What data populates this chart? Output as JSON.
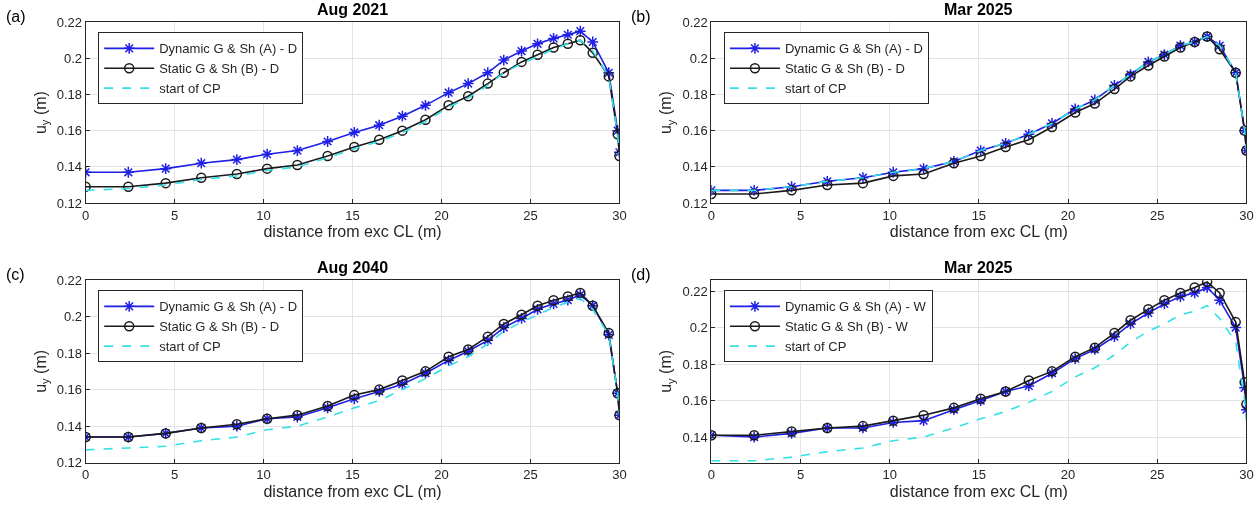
{
  "chart_data": [
    {
      "type": "line",
      "title": "Aug 2021",
      "xlabel": "distance from exc CL (m)",
      "ylabel": "u$_{y}$ (m)",
      "annotations": [
        "(a)"
      ],
      "xlim": [
        0,
        30
      ],
      "xticks": [
        0,
        5,
        10,
        15,
        20,
        25,
        30
      ],
      "ylim": [
        0.12,
        0.22
      ],
      "yticks": [
        0.12,
        0.14,
        0.16,
        0.18,
        0.2,
        0.22
      ],
      "grid": true,
      "legend": "top left",
      "x": [
        0,
        2.4,
        4.5,
        6.5,
        8.5,
        10.2,
        11.9,
        13.6,
        15.1,
        16.5,
        17.8,
        19.1,
        20.4,
        21.5,
        22.6,
        23.5,
        24.5,
        25.4,
        26.3,
        27.1,
        27.8,
        28.5,
        29.4,
        29.9,
        30
      ],
      "series": [
        {
          "name": "Dynamic G & Sh (A) - D",
          "color": "#1f1fe6",
          "marker": "cross",
          "line_style": "solid",
          "values": [
            0.137,
            0.137,
            0.139,
            0.142,
            0.144,
            0.147,
            0.149,
            0.154,
            0.159,
            0.163,
            0.168,
            0.174,
            0.181,
            0.186,
            0.192,
            0.199,
            0.204,
            0.208,
            0.211,
            0.213,
            0.215,
            0.209,
            0.192,
            0.16,
            0.148
          ]
        },
        {
          "name": "Static G & Sh (B) - D",
          "color": "#1a1a1a",
          "marker": "circle",
          "line_style": "solid",
          "values": [
            0.129,
            0.129,
            0.131,
            0.134,
            0.136,
            0.139,
            0.141,
            0.146,
            0.151,
            0.155,
            0.16,
            0.166,
            0.174,
            0.179,
            0.186,
            0.192,
            0.198,
            0.202,
            0.206,
            0.208,
            0.21,
            0.203,
            0.19,
            0.158,
            0.146
          ]
        },
        {
          "name": "start of CP",
          "color": "#33e0e6",
          "marker": "none",
          "line_style": "dashed",
          "values": [
            0.127,
            0.128,
            0.13,
            0.133,
            0.135,
            0.138,
            0.14,
            0.145,
            0.15,
            0.154,
            0.159,
            0.165,
            0.173,
            0.178,
            0.185,
            0.192,
            0.197,
            0.201,
            0.205,
            0.208,
            0.21,
            0.204,
            0.19,
            0.158,
            0.146
          ]
        }
      ]
    },
    {
      "type": "line",
      "title": "Mar 2025",
      "xlabel": "distance from exc CL (m)",
      "ylabel": "u$_{y}$ (m)",
      "annotations": [
        "(b)"
      ],
      "xlim": [
        0,
        30
      ],
      "xticks": [
        0,
        5,
        10,
        15,
        20,
        25,
        30
      ],
      "ylim": [
        0.12,
        0.22
      ],
      "yticks": [
        0.12,
        0.14,
        0.16,
        0.18,
        0.2,
        0.22
      ],
      "grid": true,
      "legend": "top left",
      "x": [
        0,
        2.4,
        4.5,
        6.5,
        8.5,
        10.2,
        11.9,
        13.6,
        15.1,
        16.5,
        17.8,
        19.1,
        20.4,
        21.5,
        22.6,
        23.5,
        24.5,
        25.4,
        26.3,
        27.1,
        27.8,
        28.5,
        29.4,
        29.9,
        30
      ],
      "series": [
        {
          "name": "Dynamic G & Sh (A) - D",
          "color": "#1f1fe6",
          "marker": "cross",
          "line_style": "solid",
          "values": [
            0.127,
            0.127,
            0.129,
            0.132,
            0.134,
            0.137,
            0.139,
            0.143,
            0.149,
            0.153,
            0.158,
            0.164,
            0.172,
            0.177,
            0.185,
            0.191,
            0.198,
            0.202,
            0.207,
            0.209,
            0.212,
            0.207,
            0.192,
            0.16,
            0.149
          ]
        },
        {
          "name": "Static G & Sh (B) - D",
          "color": "#1a1a1a",
          "marker": "circle",
          "line_style": "solid",
          "values": [
            0.125,
            0.125,
            0.127,
            0.13,
            0.131,
            0.135,
            0.136,
            0.142,
            0.146,
            0.151,
            0.155,
            0.162,
            0.17,
            0.175,
            0.183,
            0.19,
            0.196,
            0.201,
            0.206,
            0.209,
            0.212,
            0.205,
            0.192,
            0.16,
            0.149
          ]
        },
        {
          "name": "start of CP",
          "color": "#33e0e6",
          "marker": "none",
          "line_style": "dashed",
          "values": [
            0.127,
            0.127,
            0.129,
            0.132,
            0.134,
            0.137,
            0.139,
            0.143,
            0.149,
            0.153,
            0.158,
            0.164,
            0.172,
            0.177,
            0.185,
            0.191,
            0.198,
            0.202,
            0.207,
            0.209,
            0.212,
            0.207,
            0.192,
            0.16,
            0.149
          ]
        }
      ]
    },
    {
      "type": "line",
      "title": "Aug 2040",
      "xlabel": "distance from exc CL (m)",
      "ylabel": "u$_{y}$ (m)",
      "annotations": [
        "(c)"
      ],
      "xlim": [
        0,
        30
      ],
      "xticks": [
        0,
        5,
        10,
        15,
        20,
        25,
        30
      ],
      "ylim": [
        0.12,
        0.22
      ],
      "yticks": [
        0.12,
        0.14,
        0.16,
        0.18,
        0.2,
        0.22
      ],
      "grid": true,
      "legend": "top left",
      "x": [
        0,
        2.4,
        4.5,
        6.5,
        8.5,
        10.2,
        11.9,
        13.6,
        15.1,
        16.5,
        17.8,
        19.1,
        20.4,
        21.5,
        22.6,
        23.5,
        24.5,
        25.4,
        26.3,
        27.1,
        27.8,
        28.5,
        29.4,
        29.9,
        30
      ],
      "series": [
        {
          "name": "Dynamic G & Sh (A) - D",
          "color": "#1f1fe6",
          "marker": "cross",
          "line_style": "solid",
          "values": [
            0.134,
            0.134,
            0.136,
            0.139,
            0.14,
            0.144,
            0.145,
            0.15,
            0.155,
            0.159,
            0.163,
            0.169,
            0.176,
            0.181,
            0.187,
            0.194,
            0.199,
            0.204,
            0.207,
            0.209,
            0.212,
            0.206,
            0.19,
            0.158,
            0.146
          ]
        },
        {
          "name": "Static G & Sh (B) - D",
          "color": "#1a1a1a",
          "marker": "circle",
          "line_style": "solid",
          "values": [
            0.134,
            0.134,
            0.136,
            0.139,
            0.141,
            0.144,
            0.146,
            0.151,
            0.157,
            0.16,
            0.165,
            0.17,
            0.178,
            0.182,
            0.189,
            0.196,
            0.201,
            0.206,
            0.209,
            0.211,
            0.213,
            0.206,
            0.191,
            0.158,
            0.146
          ]
        },
        {
          "name": "start of CP",
          "color": "#33e0e6",
          "marker": "none",
          "line_style": "dashed",
          "values": [
            0.127,
            0.128,
            0.129,
            0.132,
            0.134,
            0.138,
            0.14,
            0.145,
            0.15,
            0.154,
            0.16,
            0.166,
            0.173,
            0.178,
            0.185,
            0.192,
            0.197,
            0.201,
            0.205,
            0.208,
            0.21,
            0.204,
            0.19,
            0.158,
            0.146
          ]
        }
      ]
    },
    {
      "type": "line",
      "title": "Mar 2025",
      "xlabel": "distance from exc CL (m)",
      "ylabel": "u$_{y}$ (m)",
      "annotations": [
        "(d)"
      ],
      "xlim": [
        0,
        30
      ],
      "xticks": [
        0,
        5,
        10,
        15,
        20,
        25,
        30
      ],
      "ylim": [
        0.126,
        0.226
      ],
      "yticks": [
        0.14,
        0.16,
        0.18,
        0.2,
        0.22
      ],
      "grid": true,
      "legend": "top left",
      "x": [
        0,
        2.4,
        4.5,
        6.5,
        8.5,
        10.2,
        11.9,
        13.6,
        15.1,
        16.5,
        17.8,
        19.1,
        20.4,
        21.5,
        22.6,
        23.5,
        24.5,
        25.4,
        26.3,
        27.1,
        27.8,
        28.5,
        29.4,
        29.9,
        30
      ],
      "series": [
        {
          "name": "Dynamic G & Sh (A) - W",
          "color": "#1f1fe6",
          "marker": "cross",
          "line_style": "solid",
          "values": [
            0.141,
            0.14,
            0.142,
            0.145,
            0.145,
            0.148,
            0.149,
            0.155,
            0.16,
            0.165,
            0.168,
            0.175,
            0.183,
            0.188,
            0.195,
            0.202,
            0.208,
            0.213,
            0.217,
            0.219,
            0.222,
            0.215,
            0.2,
            0.167,
            0.155
          ]
        },
        {
          "name": "Static G & Sh (B) - W",
          "color": "#1a1a1a",
          "marker": "circle",
          "line_style": "solid",
          "values": [
            0.141,
            0.141,
            0.143,
            0.145,
            0.146,
            0.149,
            0.152,
            0.156,
            0.161,
            0.165,
            0.171,
            0.176,
            0.184,
            0.189,
            0.197,
            0.204,
            0.21,
            0.215,
            0.219,
            0.222,
            0.225,
            0.219,
            0.203,
            0.17,
            0.158
          ]
        },
        {
          "name": "start of CP",
          "color": "#33e0e6",
          "marker": "none",
          "line_style": "dashed",
          "values": [
            0.127,
            0.127,
            0.129,
            0.132,
            0.134,
            0.138,
            0.14,
            0.145,
            0.15,
            0.154,
            0.159,
            0.165,
            0.173,
            0.178,
            0.185,
            0.192,
            0.198,
            0.202,
            0.207,
            0.209,
            0.212,
            0.205,
            0.192,
            0.16,
            0.149
          ]
        }
      ]
    }
  ]
}
